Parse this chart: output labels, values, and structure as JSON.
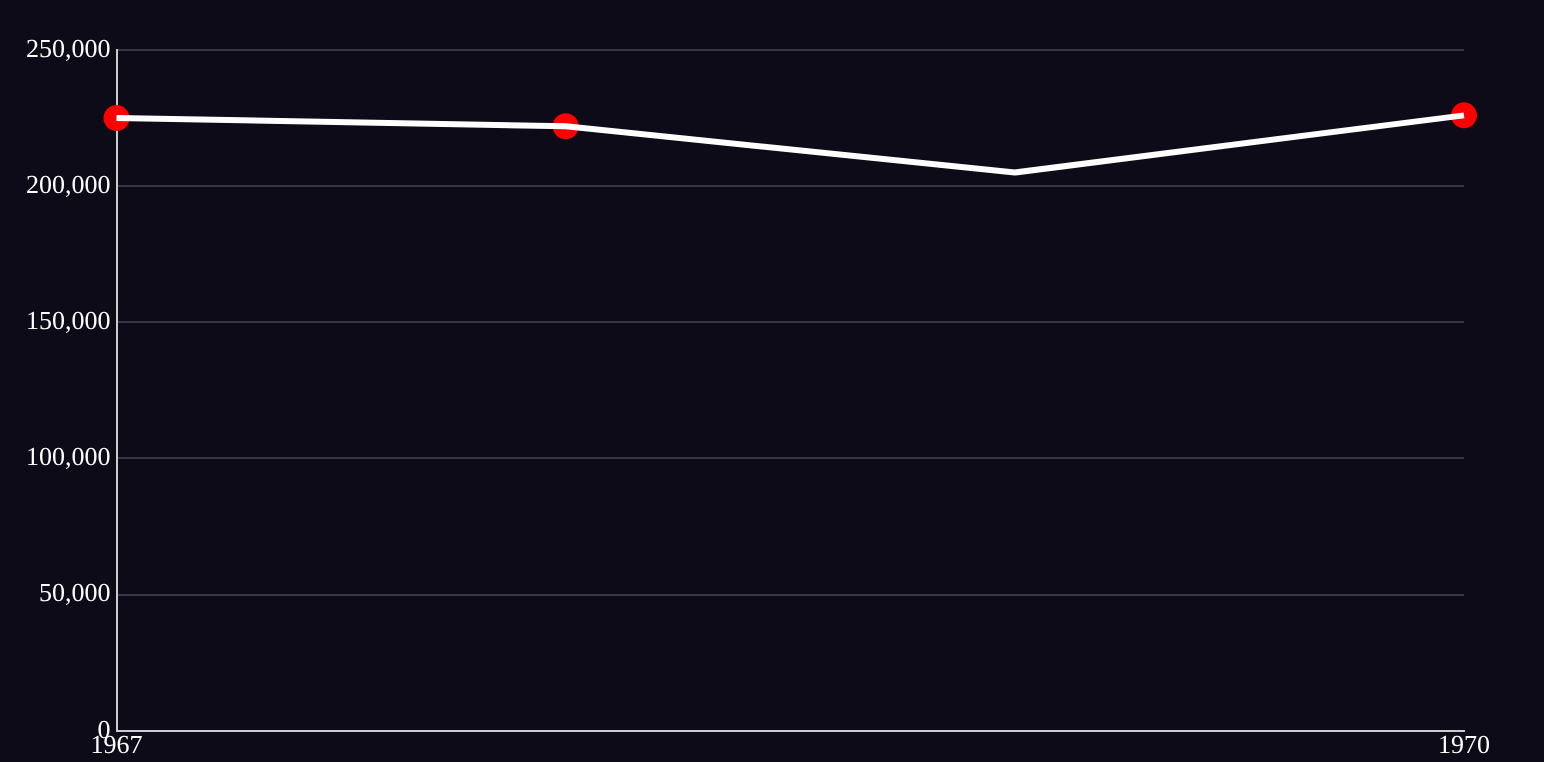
{
  "chart_data": {
    "type": "line",
    "x": [
      1967,
      1968,
      1969,
      1970
    ],
    "xlim": [
      1967,
      1970
    ],
    "xticks": [
      1967,
      1970
    ],
    "ylim": [
      0,
      250000
    ],
    "yticks": [
      0,
      {
        "value": 50000,
        "label": "50,000"
      },
      {
        "value": 100000,
        "label": "100,000"
      },
      {
        "value": 150000,
        "label": "150,000"
      },
      {
        "value": 200000,
        "label": "200,000"
      },
      {
        "value": 250000,
        "label": "250,000"
      }
    ],
    "grid": "y",
    "legend": false,
    "series": [
      {
        "type": "line",
        "color": "#ffffff",
        "marker": "none",
        "values": [
          225000,
          222000,
          205000,
          226000
        ]
      },
      {
        "type": "scatter",
        "color": "#ff0000",
        "marker": "circle",
        "values": [
          225000,
          222000,
          null,
          226000
        ]
      }
    ]
  }
}
